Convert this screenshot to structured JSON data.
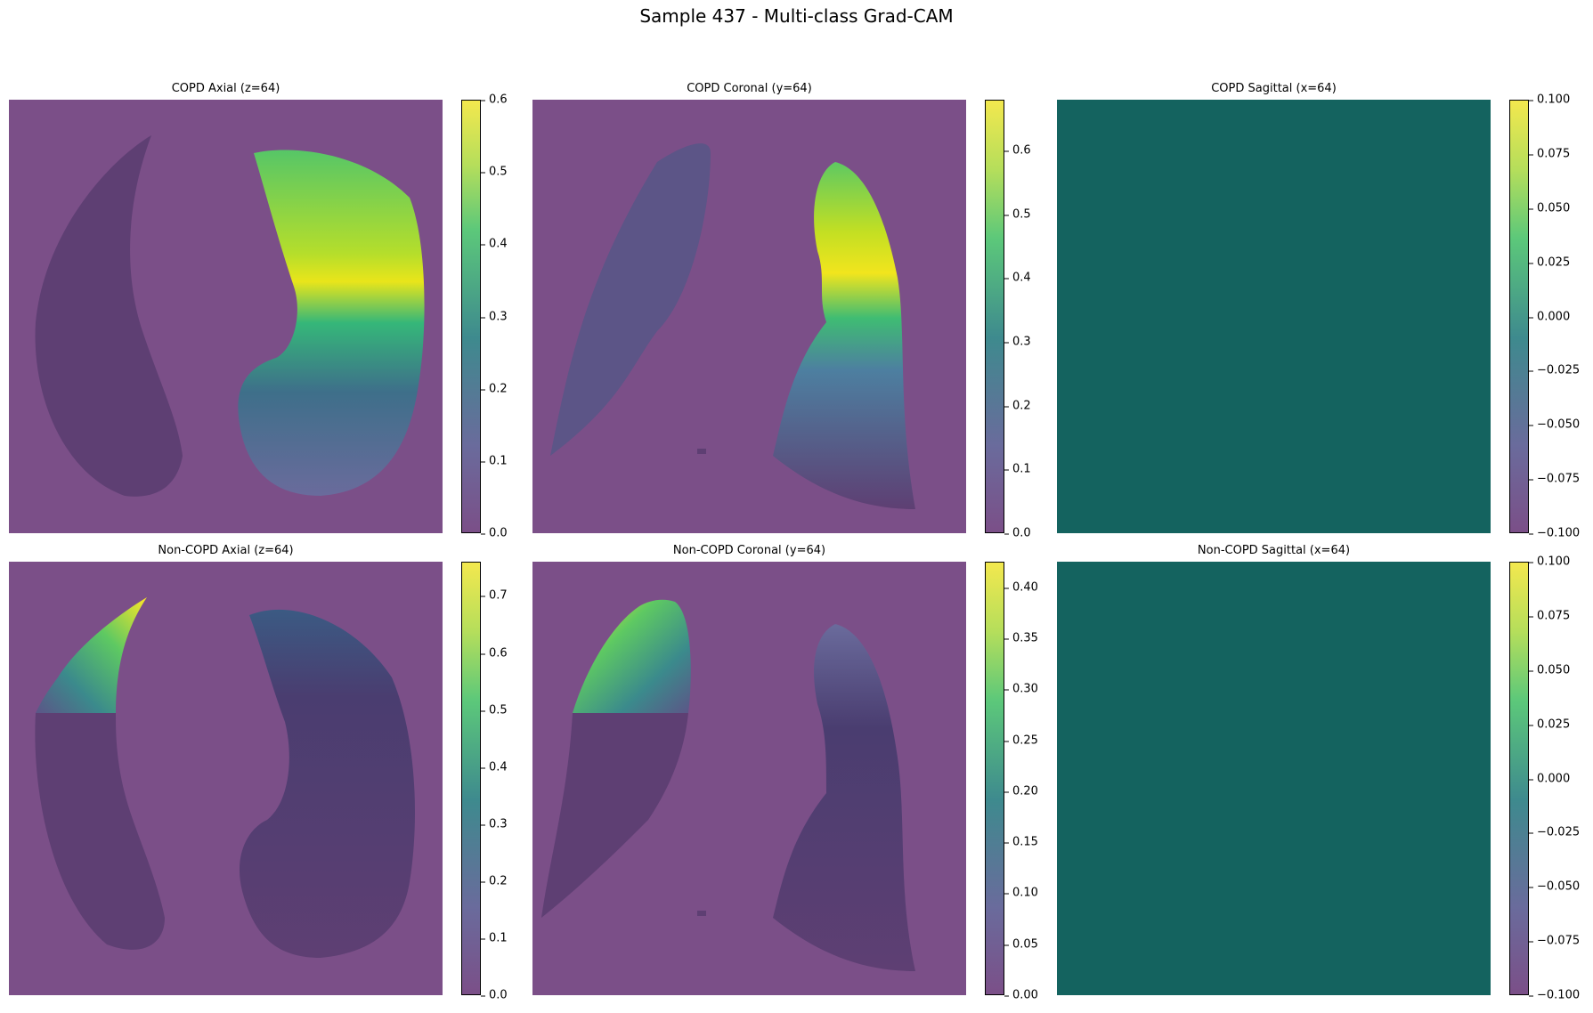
{
  "suptitle": "Sample 437 - Multi-class Grad-CAM",
  "colors": {
    "background_overlay": "#7b4f88",
    "flat_cam": "#14635f",
    "colormap": "viridis"
  },
  "panels": [
    {
      "title": "COPD Axial (z=64)",
      "view": "axial",
      "hotspot": "right-lung-mid",
      "colorbar": {
        "min": 0.0,
        "max": 0.6,
        "ticks": [
          "0.0",
          "0.1",
          "0.2",
          "0.3",
          "0.4",
          "0.5",
          "0.6"
        ]
      }
    },
    {
      "title": "COPD Coronal (y=64)",
      "view": "coronal",
      "hotspot": "right-lung-upper",
      "colorbar": {
        "min": 0.0,
        "max": 0.68,
        "ticks": [
          "0.0",
          "0.1",
          "0.2",
          "0.3",
          "0.4",
          "0.5",
          "0.6"
        ]
      }
    },
    {
      "title": "COPD Sagittal (x=64)",
      "view": "sagittal",
      "hotspot": "none",
      "colorbar": {
        "min": -0.1,
        "max": 0.1,
        "ticks": [
          "−0.100",
          "−0.075",
          "−0.050",
          "−0.025",
          "0.000",
          "0.025",
          "0.050",
          "0.075",
          "0.100"
        ]
      }
    },
    {
      "title": "Non-COPD Axial (z=64)",
      "view": "axial",
      "hotspot": "left-lung-apex",
      "colorbar": {
        "min": 0.0,
        "max": 0.76,
        "ticks": [
          "0.0",
          "0.1",
          "0.2",
          "0.3",
          "0.4",
          "0.5",
          "0.6",
          "0.7"
        ]
      }
    },
    {
      "title": "Non-COPD Coronal (y=64)",
      "view": "coronal",
      "hotspot": "left-lung-apex",
      "colorbar": {
        "min": 0.0,
        "max": 0.425,
        "ticks": [
          "0.00",
          "0.05",
          "0.10",
          "0.15",
          "0.20",
          "0.25",
          "0.30",
          "0.35",
          "0.40"
        ]
      }
    },
    {
      "title": "Non-COPD Sagittal (x=64)",
      "view": "sagittal",
      "hotspot": "none",
      "colorbar": {
        "min": -0.1,
        "max": 0.1,
        "ticks": [
          "−0.100",
          "−0.075",
          "−0.050",
          "−0.025",
          "0.000",
          "0.025",
          "0.050",
          "0.075",
          "0.100"
        ]
      }
    }
  ]
}
